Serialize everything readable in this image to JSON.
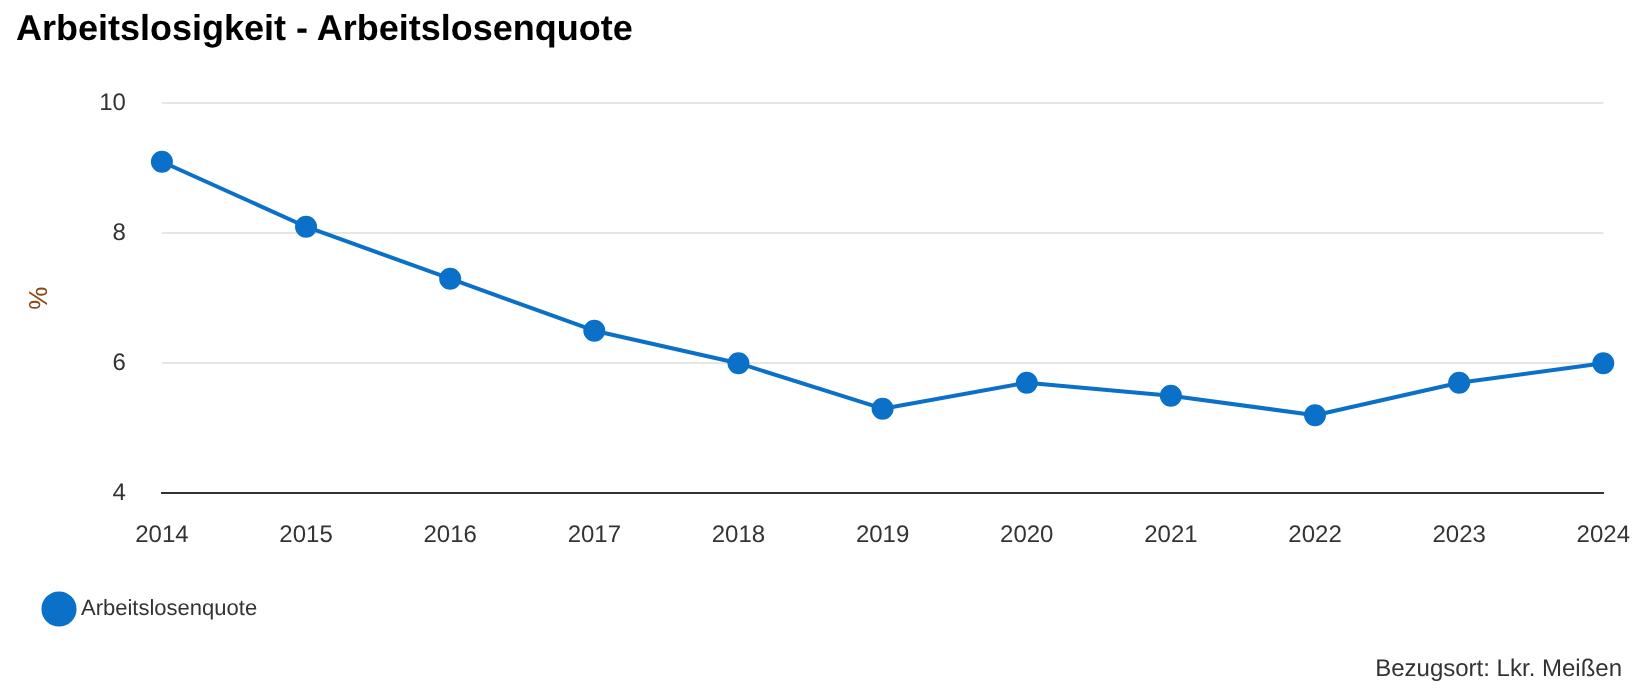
{
  "chart_data": {
    "type": "line",
    "title": "Arbeitslosigkeit - Arbeitslosenquote",
    "ylabel": "%",
    "categories": [
      "2014",
      "2015",
      "2016",
      "2017",
      "2018",
      "2019",
      "2020",
      "2021",
      "2022",
      "2023",
      "2024"
    ],
    "series": [
      {
        "name": "Arbeitslosenquote",
        "color": "#0b70c7",
        "values": [
          9.1,
          8.1,
          7.3,
          6.5,
          6.0,
          5.3,
          5.7,
          5.5,
          5.2,
          5.7,
          6.0
        ]
      }
    ],
    "ylim": [
      4,
      10
    ],
    "yticks": [
      4,
      6,
      8,
      10
    ],
    "grid": "y",
    "legend": "bottom left",
    "marker": "circle",
    "line_style": "solid",
    "annotations": [
      "Bezugsort: Lkr. Meißen"
    ]
  }
}
